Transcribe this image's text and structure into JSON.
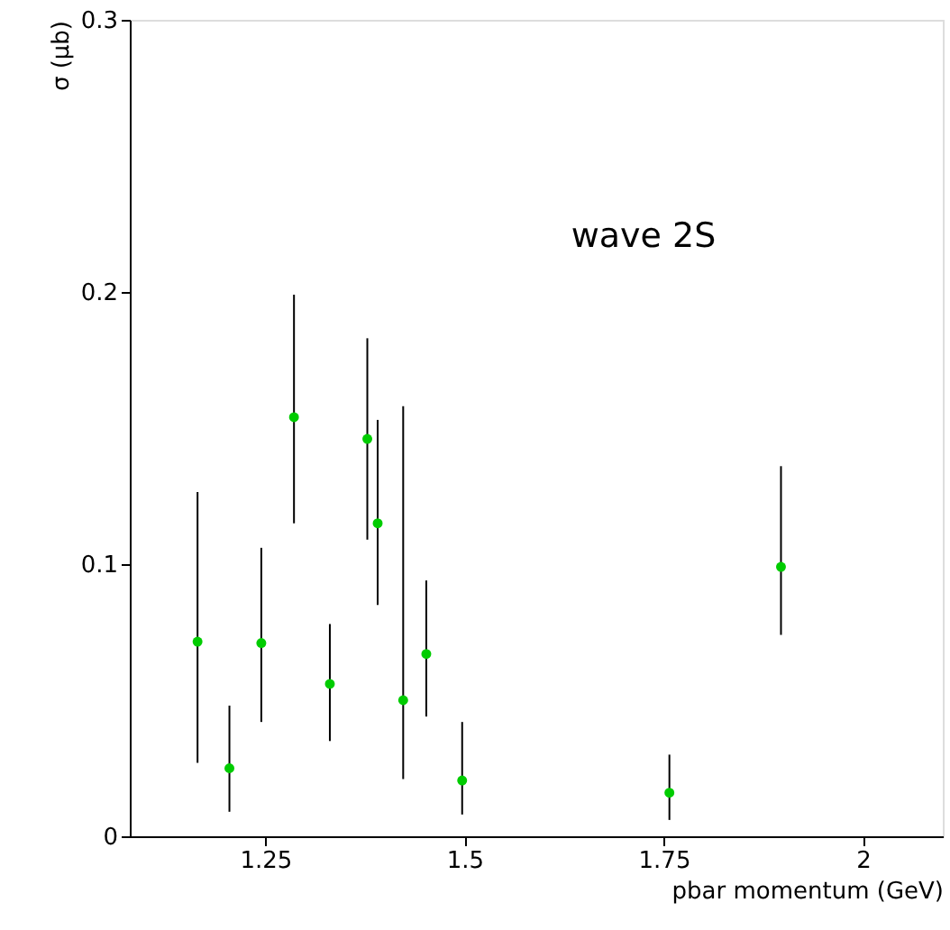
{
  "chart_data": {
    "type": "scatter",
    "xlabel": "pbar momentum (GeV)",
    "ylabel": "σ (μb)",
    "annotations": [
      "wave 2S"
    ],
    "x": [
      1.165,
      1.205,
      1.245,
      1.286,
      1.331,
      1.378,
      1.391,
      1.423,
      1.452,
      1.497,
      1.757,
      1.897
    ],
    "series": [
      {
        "color": "#00cc00",
        "values": [
          0.0715,
          0.025,
          0.071,
          0.154,
          0.056,
          0.146,
          0.115,
          0.05,
          0.067,
          0.0205,
          0.016,
          0.099
        ],
        "errors": [
          [
            0.027,
            0.1265
          ],
          [
            0.009,
            0.048
          ],
          [
            0.042,
            0.106
          ],
          [
            0.115,
            0.199
          ],
          [
            0.035,
            0.078
          ],
          [
            0.109,
            0.183
          ],
          [
            0.085,
            0.153
          ],
          [
            0.021,
            0.158
          ],
          [
            0.044,
            0.094
          ],
          [
            0.008,
            0.042
          ],
          [
            0.006,
            0.03
          ],
          [
            0.074,
            0.136
          ]
        ]
      }
    ],
    "xlim": [
      1.08,
      2.1
    ],
    "ylim": [
      0,
      0.3
    ],
    "xticks": [
      1.25,
      1.5,
      1.75,
      2
    ],
    "yticks": [
      0,
      0.1,
      0.2,
      0.3
    ],
    "grid": false,
    "marker": "circle"
  }
}
